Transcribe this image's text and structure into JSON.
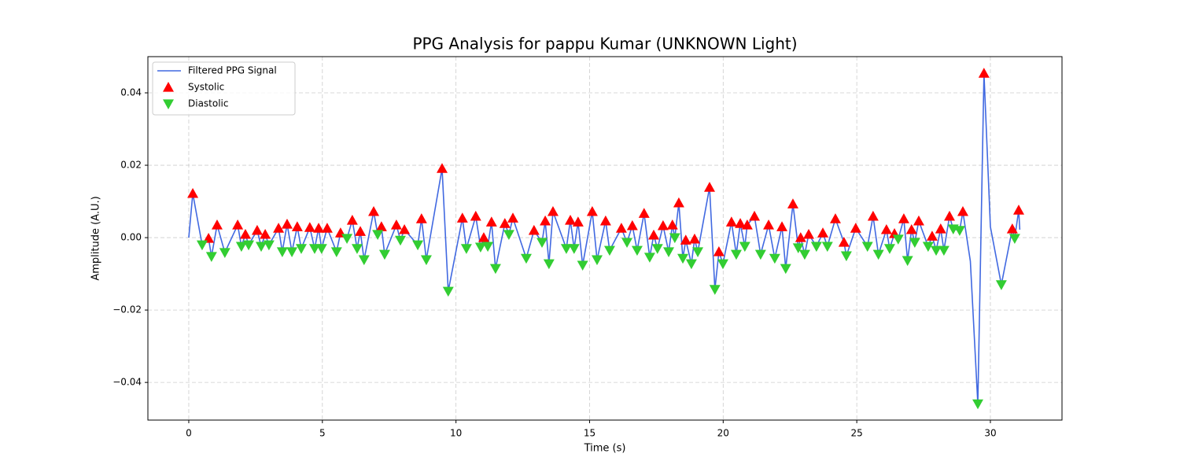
{
  "chart_data": {
    "type": "line",
    "title": "PPG Analysis for pappu Kumar (UNKNOWN Light)",
    "x_label": "Time (s)",
    "y_label": "Amplitude (A.U.)",
    "xlim": [
      -1.53,
      32.68
    ],
    "ylim": [
      -0.0504,
      0.05
    ],
    "xticks": [
      0,
      5,
      10,
      15,
      20,
      25,
      30
    ],
    "yticks": [
      {
        "value": -0.04,
        "label": "−0.04"
      },
      {
        "value": -0.02,
        "label": "−0.02"
      },
      {
        "value": 0,
        "label": "0.00"
      },
      {
        "value": 0.02,
        "label": "0.02"
      },
      {
        "value": 0.04,
        "label": "0.04"
      }
    ],
    "grid": true,
    "legend": "upper left",
    "series": [
      {
        "name": "Filtered PPG Signal",
        "kind": "line",
        "color": "#4169e1",
        "x": [
          0,
          0.15,
          0.5,
          0.74,
          0.85,
          1.06,
          1.35,
          1.83,
          1.97,
          2.12,
          2.24,
          2.56,
          2.71,
          2.86,
          3.0,
          3.36,
          3.5,
          3.68,
          3.86,
          4.06,
          4.21,
          4.53,
          4.71,
          4.86,
          4.97,
          5.18,
          5.53,
          5.68,
          5.92,
          6.12,
          6.3,
          6.42,
          6.56,
          6.92,
          7.07,
          7.21,
          7.33,
          7.77,
          7.92,
          8.07,
          8.57,
          8.71,
          8.89,
          9.48,
          9.71,
          10.24,
          10.39,
          10.74,
          10.92,
          11.04,
          11.19,
          11.33,
          11.48,
          11.83,
          11.98,
          12.13,
          12.63,
          12.92,
          13.22,
          13.34,
          13.48,
          13.63,
          14.13,
          14.28,
          14.42,
          14.57,
          14.74,
          15.1,
          15.28,
          15.6,
          15.75,
          16.19,
          16.4,
          16.6,
          16.78,
          17.04,
          17.25,
          17.4,
          17.54,
          17.75,
          17.96,
          18.1,
          18.19,
          18.34,
          18.49,
          18.6,
          18.81,
          18.93,
          19.05,
          19.49,
          19.69,
          19.84,
          19.99,
          20.31,
          20.49,
          20.64,
          20.81,
          20.9,
          21.17,
          21.4,
          21.7,
          21.93,
          22.2,
          22.34,
          22.61,
          22.81,
          22.9,
          23.05,
          23.2,
          23.49,
          23.73,
          23.9,
          24.2,
          24.52,
          24.61,
          24.96,
          25.4,
          25.61,
          25.81,
          26.11,
          26.23,
          26.41,
          26.55,
          26.76,
          26.9,
          27.05,
          27.17,
          27.32,
          27.67,
          27.82,
          27.97,
          28.14,
          28.26,
          28.47,
          28.61,
          28.85,
          28.97,
          29.25,
          29.53,
          29.76,
          30.0,
          30.41,
          30.82,
          30.91,
          31.06,
          31.1
        ],
        "values": [
          0,
          0.0122,
          -0.002,
          -0.0002,
          -0.0052,
          0.0035,
          -0.0041,
          0.0035,
          -0.0024,
          0.0009,
          -0.002,
          0.002,
          -0.0024,
          0.0009,
          -0.002,
          0.0026,
          -0.0039,
          0.0037,
          -0.0039,
          0.003,
          -0.003,
          0.0028,
          -0.003,
          0.0026,
          -0.003,
          0.0026,
          -0.0039,
          0.0013,
          -0.0002,
          0.0048,
          -0.003,
          0.0017,
          -0.0061,
          0.0072,
          0.0009,
          0.003,
          -0.0046,
          0.0035,
          -0.0007,
          0.0022,
          -0.002,
          0.0052,
          -0.0061,
          0.0191,
          -0.0148,
          0.0054,
          -0.003,
          0.0059,
          -0.0026,
          0,
          -0.0024,
          0.0043,
          -0.0085,
          0.0039,
          0.0009,
          0.0054,
          -0.0057,
          0.002,
          -0.0013,
          0.0046,
          -0.0072,
          0.0072,
          -0.003,
          0.0048,
          -0.003,
          0.0043,
          -0.0076,
          0.0072,
          -0.0061,
          0.0046,
          -0.0035,
          0.0026,
          -0.0013,
          0.0033,
          -0.0035,
          0.0067,
          -0.0054,
          0.0007,
          -0.003,
          0.0033,
          -0.0039,
          0.0035,
          0,
          0.0096,
          -0.0057,
          -0.0007,
          -0.0072,
          -0.0004,
          -0.0039,
          0.0139,
          -0.0143,
          -0.0039,
          -0.0072,
          0.0043,
          -0.0046,
          0.0039,
          -0.0024,
          0.0035,
          0.0059,
          -0.0046,
          0.0035,
          -0.0057,
          0.003,
          -0.0085,
          0.0093,
          -0.0028,
          0,
          -0.0046,
          0.0009,
          -0.0024,
          0.0013,
          -0.0024,
          0.0052,
          -0.0013,
          -0.005,
          0.0026,
          -0.0024,
          0.0059,
          -0.0046,
          0.0022,
          -0.003,
          0.0011,
          -0.0004,
          0.0052,
          -0.0063,
          0.0022,
          -0.0013,
          0.0046,
          -0.0024,
          0.0004,
          -0.0035,
          0.0024,
          -0.0035,
          0.0059,
          0.0024,
          0.002,
          0.0072,
          -0.0065,
          -0.0459,
          0.0454,
          0.003,
          -0.013,
          0.0024,
          -0.0002,
          0.0076,
          0.0022
        ]
      },
      {
        "name": "Systolic",
        "kind": "scatter",
        "marker": "up",
        "color": "#ff0000",
        "x": [
          0.15,
          0.74,
          1.06,
          1.83,
          2.12,
          2.56,
          2.86,
          3.36,
          3.68,
          4.06,
          4.53,
          4.86,
          5.18,
          5.68,
          6.12,
          6.42,
          6.92,
          7.21,
          7.77,
          8.07,
          8.71,
          9.48,
          10.24,
          10.74,
          11.04,
          11.33,
          11.83,
          12.13,
          12.92,
          13.34,
          13.63,
          14.28,
          14.57,
          15.1,
          15.6,
          16.19,
          16.6,
          17.04,
          17.4,
          17.75,
          18.1,
          18.34,
          18.6,
          18.93,
          19.49,
          19.84,
          20.31,
          20.64,
          20.9,
          21.17,
          21.7,
          22.2,
          22.61,
          22.9,
          23.2,
          23.73,
          24.2,
          24.52,
          24.96,
          25.61,
          26.11,
          26.41,
          26.76,
          27.05,
          27.32,
          27.82,
          28.14,
          28.47,
          28.97,
          29.76,
          30.82,
          31.06
        ],
        "values": [
          0.0122,
          -0.0002,
          0.0035,
          0.0035,
          0.0009,
          0.002,
          0.0009,
          0.0026,
          0.0037,
          0.003,
          0.0028,
          0.0026,
          0.0026,
          0.0013,
          0.0048,
          0.0017,
          0.0072,
          0.003,
          0.0035,
          0.0022,
          0.0052,
          0.0191,
          0.0054,
          0.0059,
          0,
          0.0043,
          0.0039,
          0.0054,
          0.002,
          0.0046,
          0.0072,
          0.0048,
          0.0043,
          0.0072,
          0.0046,
          0.0026,
          0.0033,
          0.0067,
          0.0007,
          0.0033,
          0.0035,
          0.0096,
          -0.0007,
          -0.0004,
          0.0139,
          -0.0039,
          0.0043,
          0.0039,
          0.0035,
          0.0059,
          0.0035,
          0.003,
          0.0093,
          0,
          0.0009,
          0.0013,
          0.0052,
          -0.0013,
          0.0026,
          0.0059,
          0.0022,
          0.0011,
          0.0052,
          0.0022,
          0.0046,
          0.0004,
          0.0024,
          0.0059,
          0.0072,
          0.0454,
          0.0024,
          0.0076
        ]
      },
      {
        "name": "Diastolic",
        "kind": "scatter",
        "marker": "down",
        "color": "#32cd32",
        "x": [
          0.5,
          0.85,
          1.35,
          1.97,
          2.24,
          2.71,
          3.0,
          3.5,
          3.86,
          4.21,
          4.71,
          4.97,
          5.53,
          5.92,
          6.3,
          6.56,
          7.07,
          7.33,
          7.92,
          8.57,
          8.89,
          9.71,
          10.39,
          10.92,
          11.19,
          11.48,
          11.98,
          12.63,
          13.22,
          13.48,
          14.13,
          14.42,
          14.74,
          15.28,
          15.75,
          16.4,
          16.78,
          17.25,
          17.54,
          17.96,
          18.19,
          18.49,
          18.81,
          19.05,
          19.69,
          19.99,
          20.49,
          20.81,
          21.4,
          21.93,
          22.34,
          22.81,
          23.05,
          23.49,
          23.9,
          24.61,
          25.4,
          25.81,
          26.23,
          26.55,
          26.9,
          27.17,
          27.67,
          27.97,
          28.26,
          28.61,
          28.85,
          29.53,
          30.41,
          30.91
        ],
        "values": [
          -0.002,
          -0.0052,
          -0.0041,
          -0.0024,
          -0.002,
          -0.0024,
          -0.002,
          -0.0039,
          -0.0039,
          -0.003,
          -0.003,
          -0.003,
          -0.0039,
          -0.0002,
          -0.003,
          -0.0061,
          0.0009,
          -0.0046,
          -0.0007,
          -0.002,
          -0.0061,
          -0.0148,
          -0.003,
          -0.0026,
          -0.0024,
          -0.0085,
          0.0009,
          -0.0057,
          -0.0013,
          -0.0072,
          -0.003,
          -0.003,
          -0.0076,
          -0.0061,
          -0.0035,
          -0.0013,
          -0.0035,
          -0.0054,
          -0.003,
          -0.0039,
          0,
          -0.0057,
          -0.0072,
          -0.0039,
          -0.0143,
          -0.0072,
          -0.0046,
          -0.0024,
          -0.0046,
          -0.0057,
          -0.0085,
          -0.0028,
          -0.0046,
          -0.0024,
          -0.0024,
          -0.005,
          -0.0024,
          -0.0046,
          -0.003,
          -0.0004,
          -0.0063,
          -0.0013,
          -0.0024,
          -0.0035,
          -0.0035,
          0.0024,
          0.002,
          -0.0459,
          -0.013,
          -0.0002
        ]
      }
    ]
  }
}
